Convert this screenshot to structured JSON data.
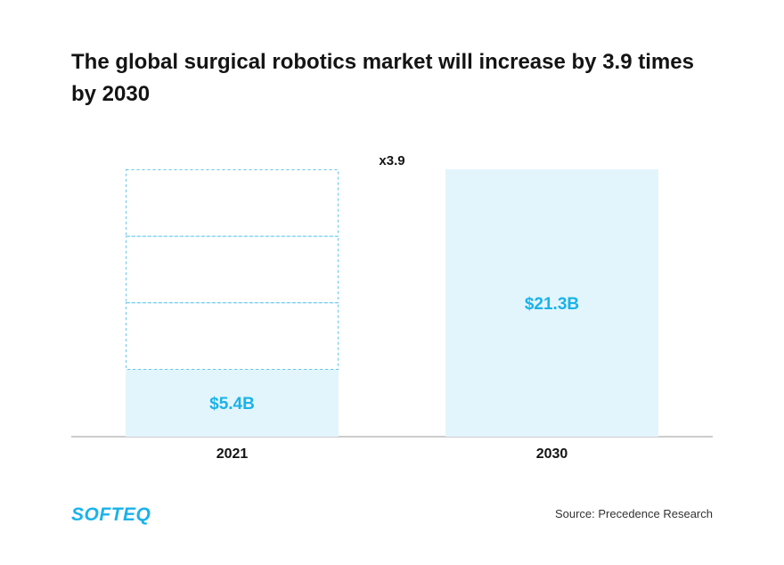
{
  "title": "The global surgical robotics market will increase by 3.9 times by 2030",
  "source": "Source: Precedence Research",
  "logo_text": "SOFTEQ",
  "colors": {
    "bar_fill": "#e3f5fc",
    "accent": "#1ab2ea",
    "dashed": "#63c6ec",
    "axis": "#9a9a9a"
  },
  "chart_data": {
    "type": "bar",
    "title": "The global surgical robotics market will increase by 3.9 times by 2030",
    "categories": [
      "2021",
      "2030"
    ],
    "values": [
      5.4,
      21.3
    ],
    "labels": [
      "$5.4B",
      "$21.3B"
    ],
    "unit": "USD billions",
    "multiplier_label": "x3.9",
    "ghost_segments": 3,
    "ylim": [
      0,
      21.3
    ],
    "xlabel": "",
    "ylabel": "",
    "grid": false,
    "legend": "none"
  }
}
